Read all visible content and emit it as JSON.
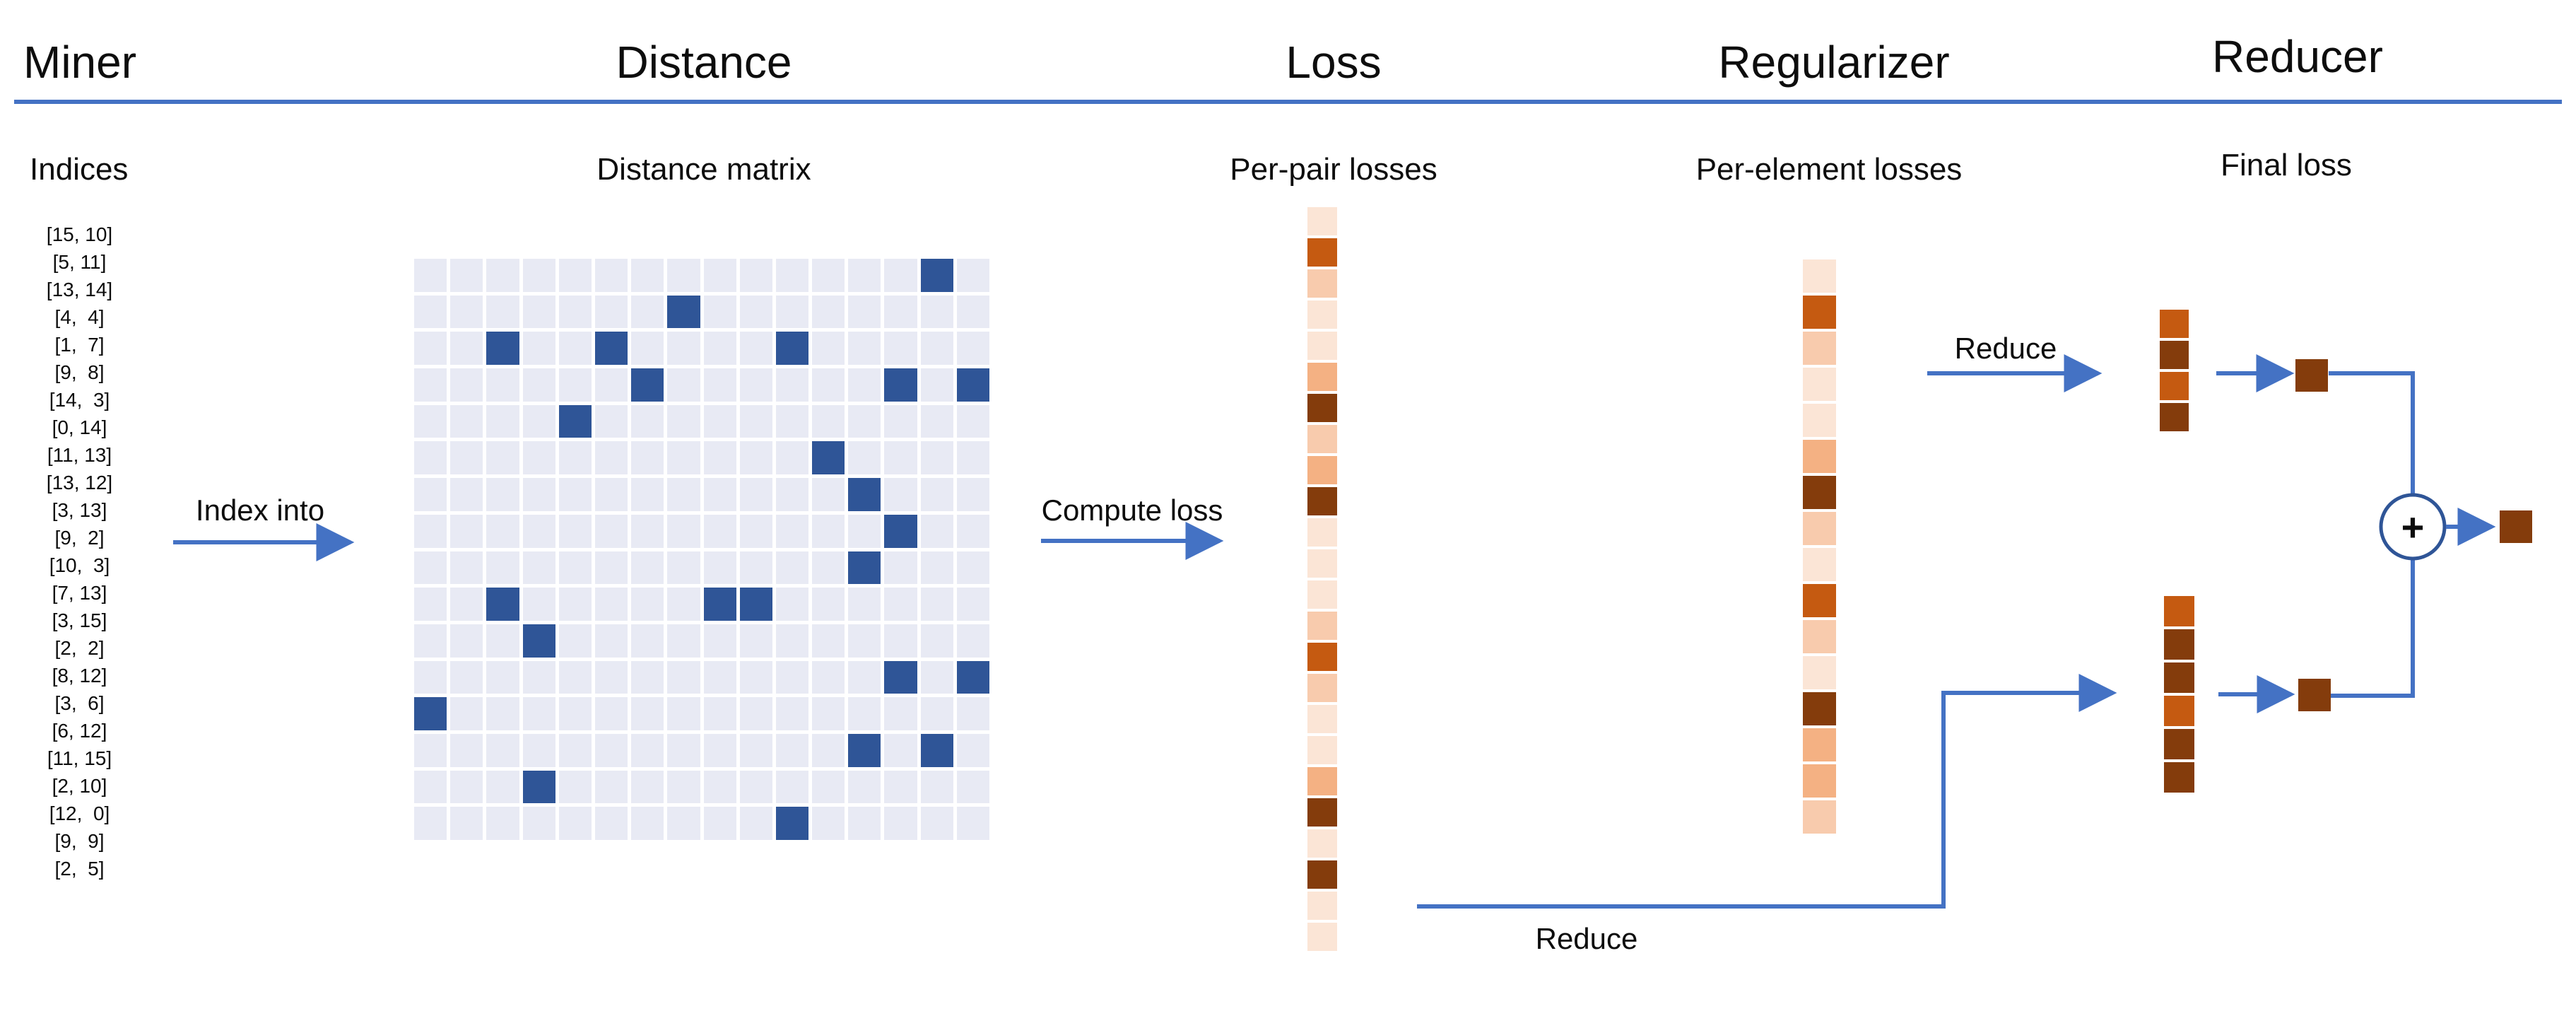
{
  "header": {
    "columns": [
      {
        "label": "Miner"
      },
      {
        "label": "Distance"
      },
      {
        "label": "Loss"
      },
      {
        "label": "Regularizer"
      },
      {
        "label": "Reducer"
      }
    ],
    "divider_color": "#4472C4"
  },
  "miner": {
    "subtitle": "Indices",
    "action_label": "Index into",
    "indices": [
      "[15, 10]",
      "[5, 11]",
      "[13, 14]",
      "[4,  4]",
      "[1,  7]",
      "[9,  8]",
      "[14,  3]",
      "[0, 14]",
      "[11, 13]",
      "[13, 12]",
      "[3, 13]",
      "[9,  2]",
      "[10,  3]",
      "[7, 13]",
      "[3, 15]",
      "[2,  2]",
      "[8, 12]",
      "[3,  6]",
      "[6, 12]",
      "[11, 15]",
      "[2, 10]",
      "[12,  0]",
      "[9,  9]",
      "[2,  5]"
    ]
  },
  "distance": {
    "subtitle": "Distance matrix",
    "grid_size": 16,
    "highlighted_cells": [
      [
        15,
        10
      ],
      [
        5,
        11
      ],
      [
        13,
        14
      ],
      [
        4,
        4
      ],
      [
        1,
        7
      ],
      [
        9,
        8
      ],
      [
        14,
        3
      ],
      [
        0,
        14
      ],
      [
        11,
        13
      ],
      [
        13,
        12
      ],
      [
        3,
        13
      ],
      [
        9,
        2
      ],
      [
        10,
        3
      ],
      [
        7,
        13
      ],
      [
        3,
        15
      ],
      [
        2,
        2
      ],
      [
        8,
        12
      ],
      [
        3,
        6
      ],
      [
        6,
        12
      ],
      [
        11,
        15
      ],
      [
        2,
        10
      ],
      [
        12,
        0
      ],
      [
        9,
        9
      ],
      [
        2,
        5
      ]
    ],
    "cell_color": "#E8EAF4",
    "highlight_color": "#2F5597"
  },
  "loss": {
    "subtitle": "Per-pair losses",
    "action_label": "Compute loss",
    "cells": [
      "#FBE5D6",
      "#C55A11",
      "#F8CBAD",
      "#FBE5D6",
      "#FBE5D6",
      "#F4B183",
      "#843C0C",
      "#F8CBAD",
      "#F4B183",
      "#843C0C",
      "#FBE5D6",
      "#FBE5D6",
      "#FBE5D6",
      "#F8CBAD",
      "#C55A11",
      "#F8CBAD",
      "#FBE5D6",
      "#FBE5D6",
      "#F4B183",
      "#843C0C",
      "#FBE5D6",
      "#843C0C",
      "#FBE5D6",
      "#FBE5D6"
    ]
  },
  "regularizer": {
    "subtitle": "Per-element losses",
    "cells": [
      "#FBE5D6",
      "#C55A11",
      "#F8CBAD",
      "#FBE5D6",
      "#FBE5D6",
      "#F4B183",
      "#843C0C",
      "#F8CBAD",
      "#FBE5D6",
      "#C55A11",
      "#F8CBAD",
      "#FBE5D6",
      "#843C0C",
      "#F4B183",
      "#F4B183",
      "#F8CBAD"
    ]
  },
  "reducer": {
    "subtitle": "Final loss",
    "reduce_label_top": "Reduce",
    "reduce_label_bottom": "Reduce",
    "sum_symbol": "+",
    "top_strip_cells": [
      "#C55A11",
      "#843C0C",
      "#C55A11",
      "#843C0C"
    ],
    "bottom_strip_cells": [
      "#C55A11",
      "#843C0C",
      "#843C0C",
      "#C55A11",
      "#843C0C",
      "#843C0C"
    ],
    "square_color": "#843C0C"
  },
  "colors": {
    "arrow": "#4472C4",
    "circle_stroke": "#2F5597"
  }
}
